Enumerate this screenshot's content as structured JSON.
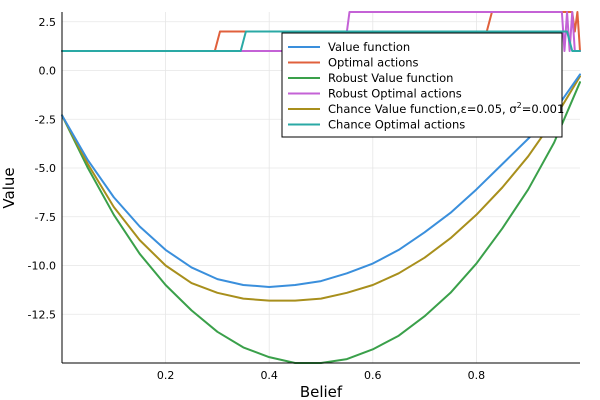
{
  "chart_data": {
    "type": "line",
    "title": "",
    "xlabel": "Belief",
    "ylabel": "Value",
    "xlim": [
      0.0,
      1.0
    ],
    "ylim": [
      -15.0,
      3.0
    ],
    "xticks": [
      0.2,
      0.4,
      0.6,
      0.8
    ],
    "xtick_labels": [
      "0.2",
      "0.4",
      "0.6",
      "0.8"
    ],
    "yticks": [
      2.5,
      0.0,
      -2.5,
      -5.0,
      -7.5,
      -10.0,
      -12.5
    ],
    "ytick_labels": [
      "2.5",
      "0.0",
      "-2.5",
      "-5.0",
      "-7.5",
      "-10.0",
      "-12.5"
    ],
    "grid": true,
    "legend_position": "top-right",
    "series": [
      {
        "name": "Value function",
        "color": "#3a8fdc",
        "x": [
          0.0,
          0.05,
          0.1,
          0.15,
          0.2,
          0.25,
          0.3,
          0.35,
          0.4,
          0.45,
          0.5,
          0.55,
          0.6,
          0.65,
          0.7,
          0.75,
          0.8,
          0.85,
          0.9,
          0.95,
          1.0
        ],
        "y": [
          -2.3,
          -4.6,
          -6.5,
          -8.0,
          -9.2,
          -10.1,
          -10.7,
          -11.0,
          -11.1,
          -11.0,
          -10.8,
          -10.4,
          -9.9,
          -9.2,
          -8.3,
          -7.3,
          -6.1,
          -4.8,
          -3.5,
          -2.1,
          -0.2
        ]
      },
      {
        "name": "Optimal actions",
        "color": "#e0603c",
        "x": [
          0.0,
          0.295,
          0.305,
          0.82,
          0.83,
          0.985,
          0.99,
          0.995,
          1.0
        ],
        "y": [
          1,
          1,
          2,
          2,
          3,
          3,
          2,
          3,
          1
        ]
      },
      {
        "name": "Robust Value function",
        "color": "#3aa04a",
        "x": [
          0.0,
          0.05,
          0.1,
          0.15,
          0.2,
          0.25,
          0.3,
          0.35,
          0.4,
          0.45,
          0.5,
          0.55,
          0.6,
          0.65,
          0.7,
          0.75,
          0.8,
          0.85,
          0.9,
          0.95,
          1.0
        ],
        "y": [
          -2.3,
          -5.0,
          -7.4,
          -9.4,
          -11.0,
          -12.3,
          -13.4,
          -14.2,
          -14.7,
          -15.0,
          -15.0,
          -14.8,
          -14.3,
          -13.6,
          -12.6,
          -11.4,
          -9.9,
          -8.1,
          -6.1,
          -3.7,
          -0.6
        ]
      },
      {
        "name": "Robust Optimal actions",
        "color": "#c462d6",
        "x": [
          0.0,
          0.545,
          0.555,
          0.965,
          0.97,
          0.975,
          0.98,
          0.985,
          0.99,
          1.0
        ],
        "y": [
          1,
          1,
          3,
          3,
          1,
          3,
          1,
          3,
          1,
          1
        ]
      },
      {
        "name": "Chance Value function,ε=0.05, σ²=0.001",
        "color": "#a88f1c",
        "x": [
          0.0,
          0.05,
          0.1,
          0.15,
          0.2,
          0.25,
          0.3,
          0.35,
          0.4,
          0.45,
          0.5,
          0.55,
          0.6,
          0.65,
          0.7,
          0.75,
          0.8,
          0.85,
          0.9,
          0.95,
          1.0
        ],
        "y": [
          -2.3,
          -4.8,
          -7.0,
          -8.7,
          -10.0,
          -10.9,
          -11.4,
          -11.7,
          -11.8,
          -11.8,
          -11.7,
          -11.4,
          -11.0,
          -10.4,
          -9.6,
          -8.6,
          -7.4,
          -6.0,
          -4.4,
          -2.5,
          -0.3
        ]
      },
      {
        "name": "Chance Optimal actions",
        "color": "#2aa9a5",
        "x": [
          0.0,
          0.345,
          0.355,
          0.975,
          0.985,
          1.0
        ],
        "y": [
          1,
          1,
          2,
          2,
          1,
          1
        ]
      }
    ]
  },
  "legend": {
    "items": [
      "Value function",
      "Optimal actions",
      "Robust Value function",
      "Robust Optimal actions",
      "Chance Value function,ε=0.05, σ",
      "Chance Optimal actions"
    ],
    "chance_sup": "2",
    "chance_tail": "=0.001"
  }
}
